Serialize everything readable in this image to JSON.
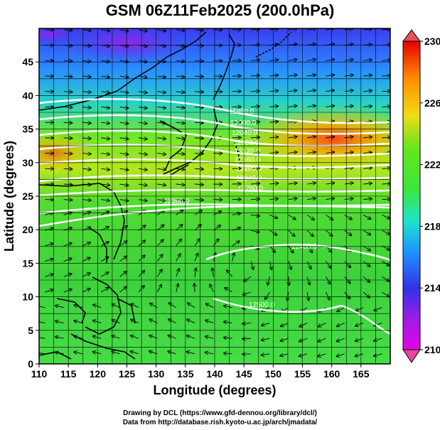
{
  "chart_data": {
    "type": "heatmap",
    "title": "GSM 06Z11Feb2025 (200.0hPa)",
    "variable": "temperature with streamlines and geopotential height contours",
    "xlabel": "Longitude (degrees)",
    "ylabel": "Latitude  (degrees)",
    "xlim": [
      110,
      170
    ],
    "ylim": [
      0,
      50
    ],
    "x_ticks": [
      110,
      115,
      120,
      125,
      130,
      135,
      140,
      145,
      150,
      155,
      160,
      165
    ],
    "y_ticks": [
      0,
      5,
      10,
      15,
      20,
      25,
      30,
      35,
      40,
      45
    ],
    "colorbar": {
      "min": 210,
      "max": 230,
      "ticks": [
        210,
        214,
        218,
        222,
        226,
        230
      ],
      "colors": [
        "#e600e6",
        "#3232e6",
        "#1ec8ff",
        "#3ce63c",
        "#f0dc14",
        "#ff8c00",
        "#e60000"
      ]
    },
    "contours": [
      {
        "level": 11960.0,
        "label": "11960.0"
      },
      {
        "level": 12000.0,
        "label": "12000.0"
      },
      {
        "level": 12040.0,
        "label": "12040.0"
      },
      {
        "level": 12080.0,
        "label": "12080.0"
      },
      {
        "level": 12120.0,
        "label": "12120.0"
      },
      {
        "level": 12160.0,
        "label": "12160.0"
      },
      {
        "level": 12200.0,
        "label": "12200.0"
      },
      {
        "level": 12240.0,
        "label": "12240.0"
      },
      {
        "level": 12280.0,
        "label": "12280.0"
      },
      {
        "level": 12360.0,
        "label": "12360.0"
      },
      {
        "level": 12400.0,
        "label": "12400.0"
      },
      {
        "level": 12500.0,
        "label": "12500.0"
      }
    ]
  },
  "credits": {
    "line1": "Drawing by DCL (https://www.gfd-dennou.org/library/dcl/)",
    "line2": "Data from http://database.rish.kyoto-u.ac.jp/arch/jmadata/"
  }
}
